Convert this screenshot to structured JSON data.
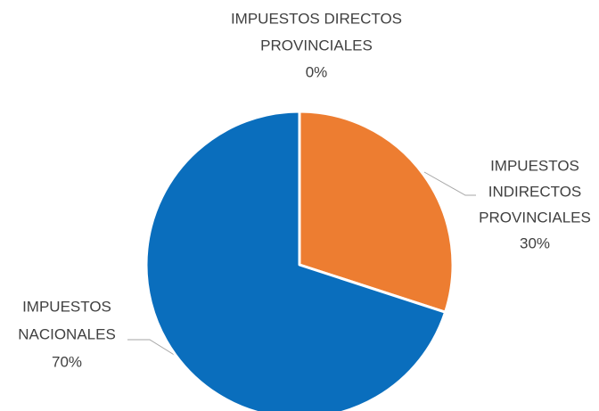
{
  "chart_data": {
    "type": "pie",
    "categories": [
      [
        "IMPUESTOS  DIRECTOS",
        "PROVINCIALES"
      ],
      [
        "IMPUESTOS",
        "INDIRECTOS",
        "PROVINCIALES"
      ],
      [
        "IMPUESTOS",
        "NACIONALES"
      ]
    ],
    "values": [
      0,
      30,
      70
    ],
    "value_labels": [
      "0%",
      "30%",
      "70%"
    ],
    "colors": [
      "#a5a5a5",
      "#ed7d31",
      "#0a6ebd"
    ]
  }
}
